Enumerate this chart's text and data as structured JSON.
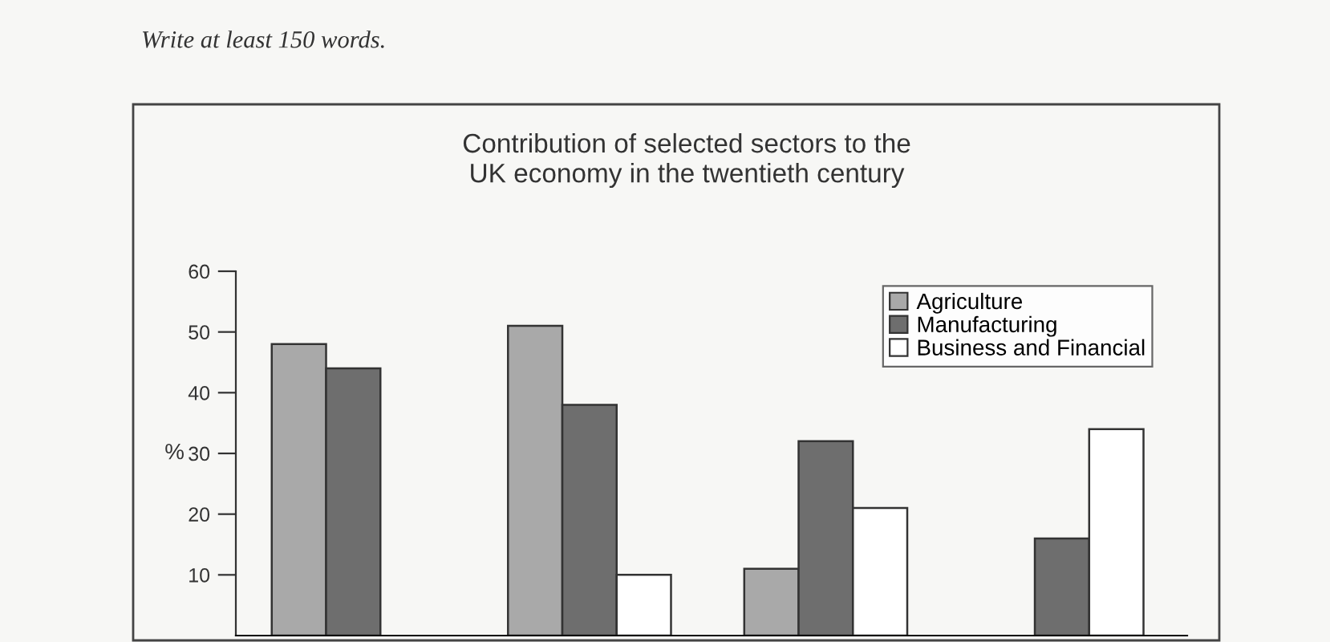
{
  "chart_data": {
    "type": "bar",
    "title": "Contribution of selected sectors to the\nUK economy in the twentieth century",
    "annotations": [
      "Write at least 150 words."
    ],
    "ylabel": "%",
    "categories": [
      null,
      null,
      null,
      null
    ],
    "series": [
      {
        "name": "Agriculture",
        "color": "#a9a9a9",
        "values": [
          48,
          51,
          11,
          null
        ]
      },
      {
        "name": "Manufacturing",
        "color": "#6e6e6e",
        "values": [
          44,
          38,
          32,
          16
        ]
      },
      {
        "name": "Business and Financial",
        "color": "#ffffff",
        "values": [
          null,
          10,
          21,
          34
        ]
      }
    ],
    "ylim": [
      0,
      60
    ],
    "yticks": [
      10,
      20,
      30,
      40,
      50,
      60
    ],
    "tick_labels": "y",
    "grid": false,
    "legend": "top right"
  }
}
